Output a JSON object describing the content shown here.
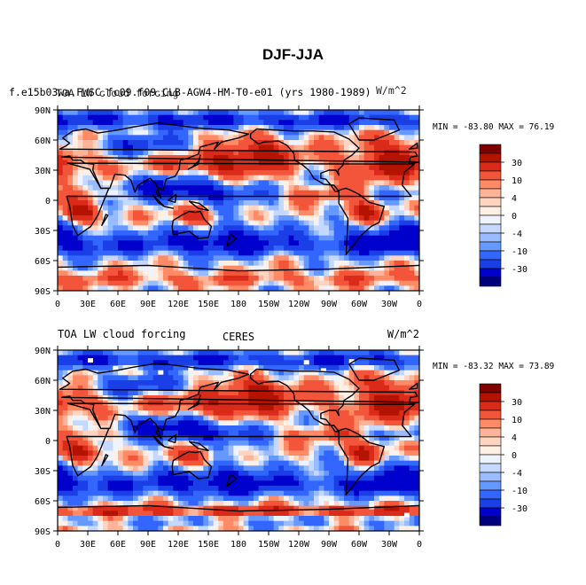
{
  "title": "DJF-JJA",
  "colors": {
    "levels": [
      "#00007f",
      "#0000cc",
      "#1a3fe6",
      "#3366ff",
      "#6699ff",
      "#99bbff",
      "#c5d8ff",
      "#eef4ff",
      "#fff0e6",
      "#ffd5c2",
      "#ffb399",
      "#ff8a66",
      "#f2553a",
      "#d92a1a",
      "#b31300",
      "#800000"
    ],
    "coast": "#000000",
    "missing": "#ffffff"
  },
  "chart_data": [
    {
      "type": "heatmap",
      "title_left": "f.e15b03wa.FWSC.fc09.f09.CLB-AGW4-HM-T0-e01 (yrs 1980-1989)",
      "title_overlap": "TOA LW cloud forcing",
      "title_right": "W/m^2",
      "title_center": "",
      "stats": "MIN = -83.80 MAX =  76.19",
      "xlabels": [
        "0",
        "30E",
        "60E",
        "90E",
        "120E",
        "150E",
        "180",
        "150W",
        "120W",
        "90W",
        "60W",
        "30W",
        "0"
      ],
      "ylabels": [
        "90N",
        "60N",
        "30N",
        "0",
        "30S",
        "60S",
        "90S"
      ],
      "colorbar_labels": [
        "30",
        "10",
        "4",
        "0",
        "-4",
        "-10",
        "-30"
      ],
      "z_range": [
        -83.8,
        76.19
      ]
    },
    {
      "type": "heatmap",
      "title_left": "TOA LW cloud forcing",
      "title_overlap": "",
      "title_right": "W/m^2",
      "title_center": "CERES",
      "stats": "MIN = -83.32 MAX =  73.89",
      "xlabels": [
        "0",
        "30E",
        "60E",
        "90E",
        "120E",
        "150E",
        "180",
        "150W",
        "120W",
        "90W",
        "60W",
        "30W",
        "0"
      ],
      "ylabels": [
        "90N",
        "60N",
        "30N",
        "0",
        "30S",
        "60S",
        "90S"
      ],
      "colorbar_labels": [
        "30",
        "10",
        "4",
        "0",
        "-4",
        "-10",
        "-30"
      ],
      "z_range": [
        -83.32,
        73.89
      ]
    }
  ]
}
